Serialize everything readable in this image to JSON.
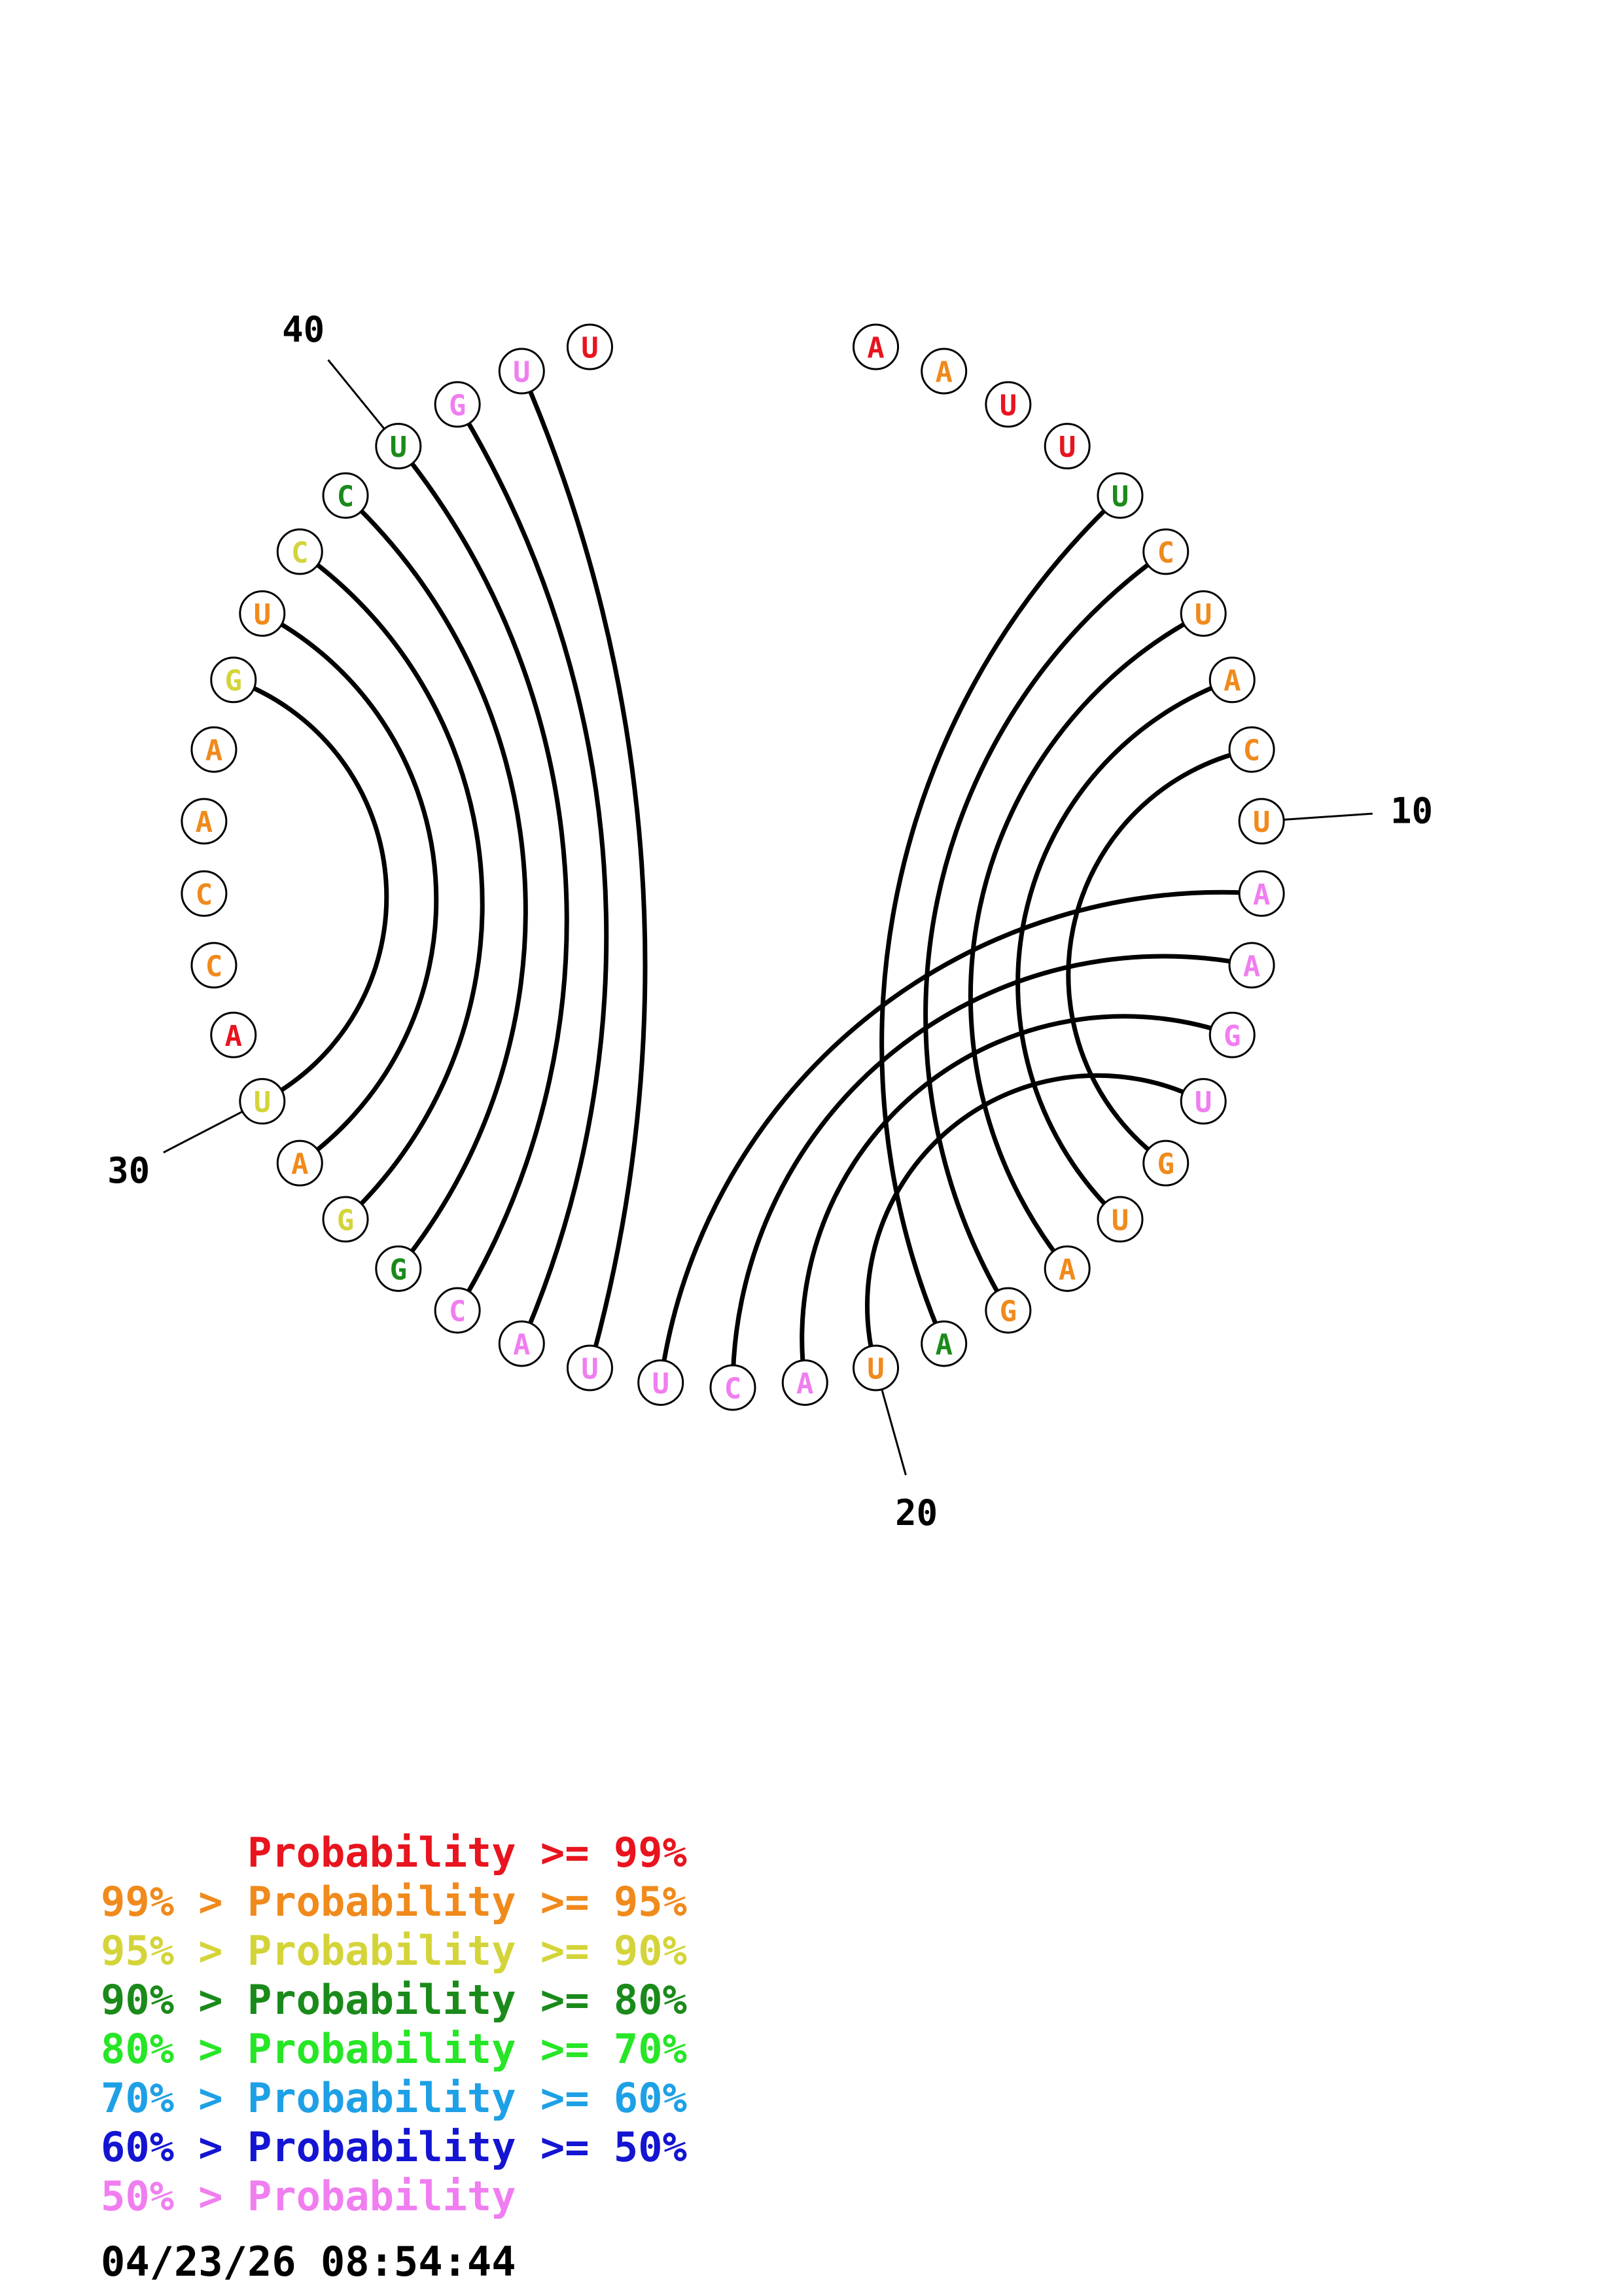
{
  "colors": {
    "red": "#e8141e",
    "orange": "#f08a1c",
    "yellow": "#d4d43a",
    "darkgreen": "#1a8a1a",
    "green": "#26e626",
    "cyan": "#1ea0e6",
    "blue": "#1414d2",
    "pink": "#f07ef0"
  },
  "sequence": [
    {
      "base": "A",
      "color": "red"
    },
    {
      "base": "A",
      "color": "orange"
    },
    {
      "base": "U",
      "color": "red"
    },
    {
      "base": "U",
      "color": "red"
    },
    {
      "base": "U",
      "color": "darkgreen"
    },
    {
      "base": "C",
      "color": "orange"
    },
    {
      "base": "U",
      "color": "orange"
    },
    {
      "base": "A",
      "color": "orange"
    },
    {
      "base": "C",
      "color": "orange"
    },
    {
      "base": "U",
      "color": "orange"
    },
    {
      "base": "A",
      "color": "pink"
    },
    {
      "base": "A",
      "color": "pink"
    },
    {
      "base": "G",
      "color": "pink"
    },
    {
      "base": "U",
      "color": "pink"
    },
    {
      "base": "G",
      "color": "orange"
    },
    {
      "base": "U",
      "color": "orange"
    },
    {
      "base": "A",
      "color": "orange"
    },
    {
      "base": "G",
      "color": "orange"
    },
    {
      "base": "A",
      "color": "darkgreen"
    },
    {
      "base": "U",
      "color": "orange"
    },
    {
      "base": "A",
      "color": "pink"
    },
    {
      "base": "C",
      "color": "pink"
    },
    {
      "base": "U",
      "color": "pink"
    },
    {
      "base": "U",
      "color": "pink"
    },
    {
      "base": "A",
      "color": "pink"
    },
    {
      "base": "C",
      "color": "pink"
    },
    {
      "base": "G",
      "color": "darkgreen"
    },
    {
      "base": "G",
      "color": "yellow"
    },
    {
      "base": "A",
      "color": "orange"
    },
    {
      "base": "U",
      "color": "yellow"
    },
    {
      "base": "A",
      "color": "red"
    },
    {
      "base": "C",
      "color": "orange"
    },
    {
      "base": "C",
      "color": "orange"
    },
    {
      "base": "A",
      "color": "orange"
    },
    {
      "base": "A",
      "color": "orange"
    },
    {
      "base": "G",
      "color": "yellow"
    },
    {
      "base": "U",
      "color": "orange"
    },
    {
      "base": "C",
      "color": "yellow"
    },
    {
      "base": "C",
      "color": "darkgreen"
    },
    {
      "base": "U",
      "color": "darkgreen"
    },
    {
      "base": "G",
      "color": "pink"
    },
    {
      "base": "U",
      "color": "pink"
    },
    {
      "base": "U",
      "color": "red"
    }
  ],
  "pairs": [
    [
      5,
      19
    ],
    [
      6,
      18
    ],
    [
      7,
      17
    ],
    [
      8,
      16
    ],
    [
      9,
      15
    ],
    [
      11,
      23
    ],
    [
      12,
      22
    ],
    [
      13,
      21
    ],
    [
      14,
      20
    ],
    [
      24,
      42
    ],
    [
      25,
      41
    ],
    [
      26,
      40
    ],
    [
      27,
      39
    ],
    [
      28,
      38
    ],
    [
      29,
      37
    ],
    [
      30,
      36
    ]
  ],
  "position_labels": [
    {
      "index": 10,
      "text": "10"
    },
    {
      "index": 20,
      "text": "20"
    },
    {
      "index": 30,
      "text": "30"
    },
    {
      "index": 40,
      "text": "40"
    }
  ],
  "legend": [
    {
      "prefix": "    ",
      "label": "Probability >= 99%",
      "color": "red"
    },
    {
      "prefix": "99% > ",
      "label": "Probability >= 95%",
      "color": "orange"
    },
    {
      "prefix": "95% > ",
      "label": "Probability >= 90%",
      "color": "yellow"
    },
    {
      "prefix": "90% > ",
      "label": "Probability >= 80%",
      "color": "darkgreen"
    },
    {
      "prefix": "80% > ",
      "label": "Probability >= 70%",
      "color": "green"
    },
    {
      "prefix": "70% > ",
      "label": "Probability >= 60%",
      "color": "cyan"
    },
    {
      "prefix": "60% > ",
      "label": "Probability >= 50%",
      "color": "blue"
    },
    {
      "prefix": "50% > ",
      "label": "Probability",
      "color": "pink"
    }
  ],
  "timestamp": "04/23/26 08:54:44"
}
